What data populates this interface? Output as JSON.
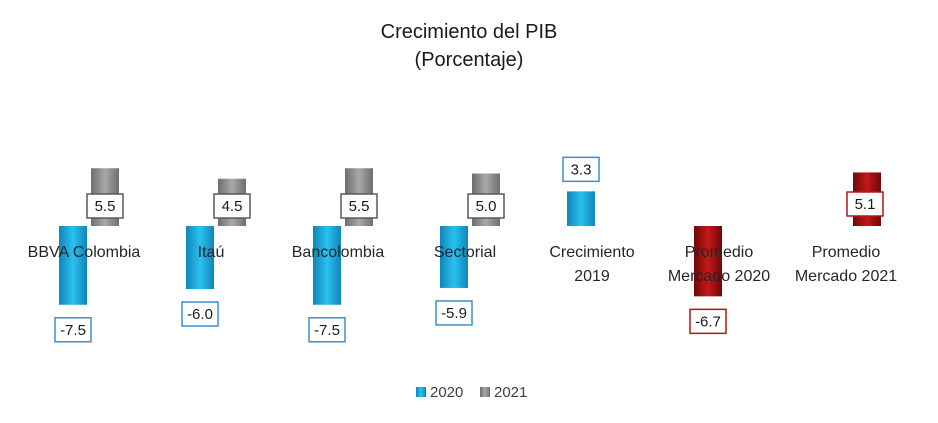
{
  "chart_data": {
    "type": "bar",
    "title": "Crecimiento del PIB",
    "subtitle": "(Porcentaje)",
    "xlabel": "",
    "ylabel": "",
    "ylim": [
      -9,
      9
    ],
    "grid": false,
    "legend_position": "bottom",
    "categories": [
      {
        "lines": [
          "BBVA Colombia"
        ]
      },
      {
        "lines": [
          "Itaú"
        ]
      },
      {
        "lines": [
          "Bancolombia"
        ]
      },
      {
        "lines": [
          "Sectorial"
        ]
      },
      {
        "lines": [
          "Crecimiento",
          "2019"
        ]
      },
      {
        "lines": [
          "Promedio",
          "Mercado 2020"
        ]
      },
      {
        "lines": [
          "Promedio",
          "Mercado 2021"
        ]
      }
    ],
    "series": [
      {
        "name": "2020",
        "color": "#1BA6D9",
        "values": [
          -7.5,
          -6.0,
          -7.5,
          -5.9,
          3.3,
          -6.7,
          null
        ],
        "labels": [
          "-7.5",
          "-6.0",
          "-7.5",
          "-5.9",
          "3.3",
          "-6.7",
          null
        ],
        "highlight": [
          null,
          null,
          null,
          null,
          null,
          "#9C0E0E",
          null
        ]
      },
      {
        "name": "2021",
        "color": "#8C8C8C",
        "values": [
          5.5,
          4.5,
          5.5,
          5.0,
          null,
          null,
          5.1
        ],
        "labels": [
          "5.5",
          "4.5",
          "5.5",
          "5.0",
          null,
          null,
          "5.1"
        ],
        "highlight": [
          null,
          null,
          null,
          null,
          null,
          null,
          "#8E0F0F"
        ]
      }
    ]
  }
}
